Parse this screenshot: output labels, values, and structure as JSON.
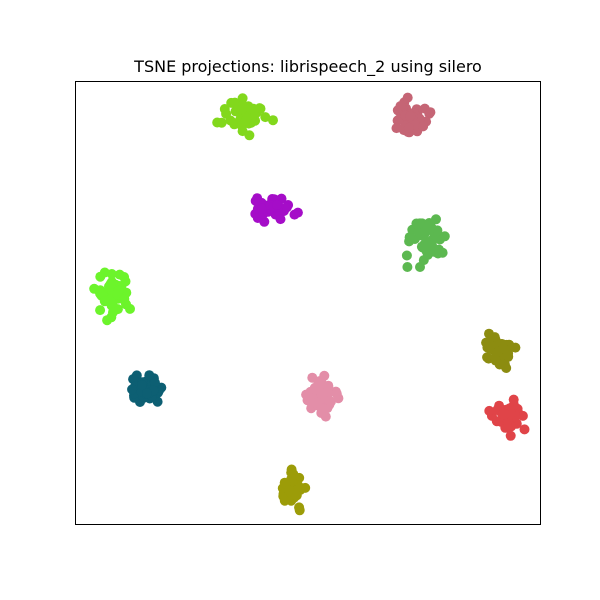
{
  "chart_data": {
    "type": "scatter",
    "title": "TSNE projections: librispeech_2 using silero",
    "xlabel": "",
    "ylabel": "",
    "axis_ticks": "hidden",
    "grid": false,
    "legend": "none",
    "xlim": [
      0,
      100
    ],
    "ylim": [
      0,
      100
    ],
    "series": [
      {
        "color": "#82d81c",
        "center": [
          36.5,
          92.3
        ],
        "spread": [
          2.3,
          1.8
        ],
        "points": 50
      },
      {
        "color": "#c56575",
        "center": [
          72.0,
          92.0
        ],
        "spread": [
          1.7,
          1.9
        ],
        "points": 50
      },
      {
        "color": "#a50dc8",
        "center": [
          42.9,
          71.4
        ],
        "spread": [
          1.9,
          1.2
        ],
        "points": 50
      },
      {
        "color": "#5cb850",
        "center": [
          75.3,
          64.6
        ],
        "spread": [
          2.1,
          2.5
        ],
        "points": 50
      },
      {
        "color": "#6cf42b",
        "center": [
          8.4,
          52.1
        ],
        "spread": [
          1.8,
          2.3
        ],
        "points": 50
      },
      {
        "color": "#8c8c10",
        "center": [
          90.6,
          39.2
        ],
        "spread": [
          1.5,
          1.8
        ],
        "points": 50
      },
      {
        "color": "#0d5f73",
        "center": [
          15.1,
          30.4
        ],
        "spread": [
          1.6,
          1.4
        ],
        "points": 50
      },
      {
        "color": "#e38ea8",
        "center": [
          52.6,
          29.1
        ],
        "spread": [
          1.7,
          1.8
        ],
        "points": 50
      },
      {
        "color": "#e04448",
        "center": [
          92.8,
          24.5
        ],
        "spread": [
          1.5,
          1.7
        ],
        "points": 50
      },
      {
        "color": "#9c9c08",
        "center": [
          46.6,
          8.0
        ],
        "spread": [
          1.1,
          1.8
        ],
        "points": 50
      }
    ]
  }
}
